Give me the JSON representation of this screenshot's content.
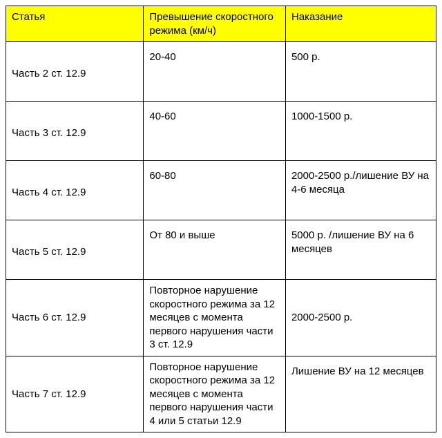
{
  "table": {
    "type": "table",
    "header_background_color": "#ffff00",
    "border_color": "#000000",
    "background_color": "#ffffff",
    "font_family": "Arial",
    "font_size": 15,
    "columns": [
      {
        "label": "Статья",
        "width": "32%"
      },
      {
        "label": "Превышение скоростного режима (км/ч)",
        "width": "33%"
      },
      {
        "label": "Наказание",
        "width": "35%"
      }
    ],
    "rows": [
      {
        "article": "Часть 2 ст. 12.9",
        "violation": "20-40",
        "penalty": "500 р."
      },
      {
        "article": "Часть 3 ст. 12.9",
        "violation": "40-60",
        "penalty": "1000-1500 р."
      },
      {
        "article": "Часть 4 ст. 12.9",
        "violation": "60-80",
        "penalty": "2000-2500 р./лишение ВУ на 4-6 месяца"
      },
      {
        "article": "Часть 5 ст. 12.9",
        "violation": "От 80 и выше",
        "penalty": "5000 р. /лишение ВУ на 6 месяцев"
      },
      {
        "article": "Часть 6 ст. 12.9",
        "violation": "Повторное нарушение скоростного режима за 12 месяцев с момента первого нарушения части 3 ст. 12.9",
        "penalty": "2000-2500 р."
      },
      {
        "article": "Часть 7 ст. 12.9",
        "violation": "Повторное нарушение скоростного режима за 12 месяцев с момента первого нарушения части 4 или 5 статьи 12.9",
        "penalty": "Лишение ВУ на 12 месяцев"
      }
    ]
  }
}
